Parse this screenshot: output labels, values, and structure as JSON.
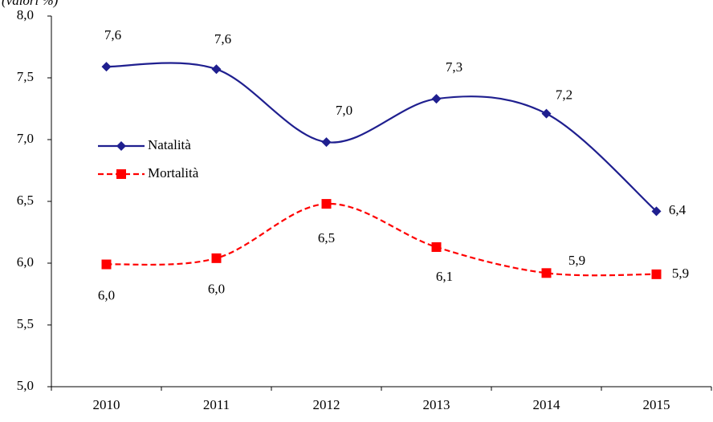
{
  "chart_data": {
    "type": "line",
    "subtitle": "(valori %)",
    "categories": [
      "2010",
      "2011",
      "2012",
      "2013",
      "2014",
      "2015"
    ],
    "series": [
      {
        "name": "Natalità",
        "color": "#1f1f8f",
        "marker": "diamond",
        "dash": false,
        "values": [
          7.59,
          7.57,
          6.98,
          7.33,
          7.21,
          6.42
        ],
        "value_labels": [
          "7,6",
          "7,6",
          "7,0",
          "7,3",
          "7,2",
          "6,4"
        ]
      },
      {
        "name": "Mortalità",
        "color": "#ff0000",
        "marker": "square",
        "dash": true,
        "values": [
          5.99,
          6.04,
          6.48,
          6.13,
          5.92,
          5.91
        ],
        "value_labels": [
          "6,0",
          "6,0",
          "6,5",
          "6,1",
          "5,9",
          "5,9"
        ]
      }
    ],
    "ylim": [
      5,
      8
    ],
    "yticks": [
      {
        "value": 5,
        "label": "5,0"
      },
      {
        "value": 5.5,
        "label": "5,5"
      },
      {
        "value": 6,
        "label": "6,0"
      },
      {
        "value": 6.5,
        "label": "6,5"
      },
      {
        "value": 7,
        "label": "7,0"
      },
      {
        "value": 7.5,
        "label": "7,5"
      },
      {
        "value": 8,
        "label": "8,0"
      }
    ],
    "grid": false,
    "smooth": true,
    "legend": "left"
  }
}
